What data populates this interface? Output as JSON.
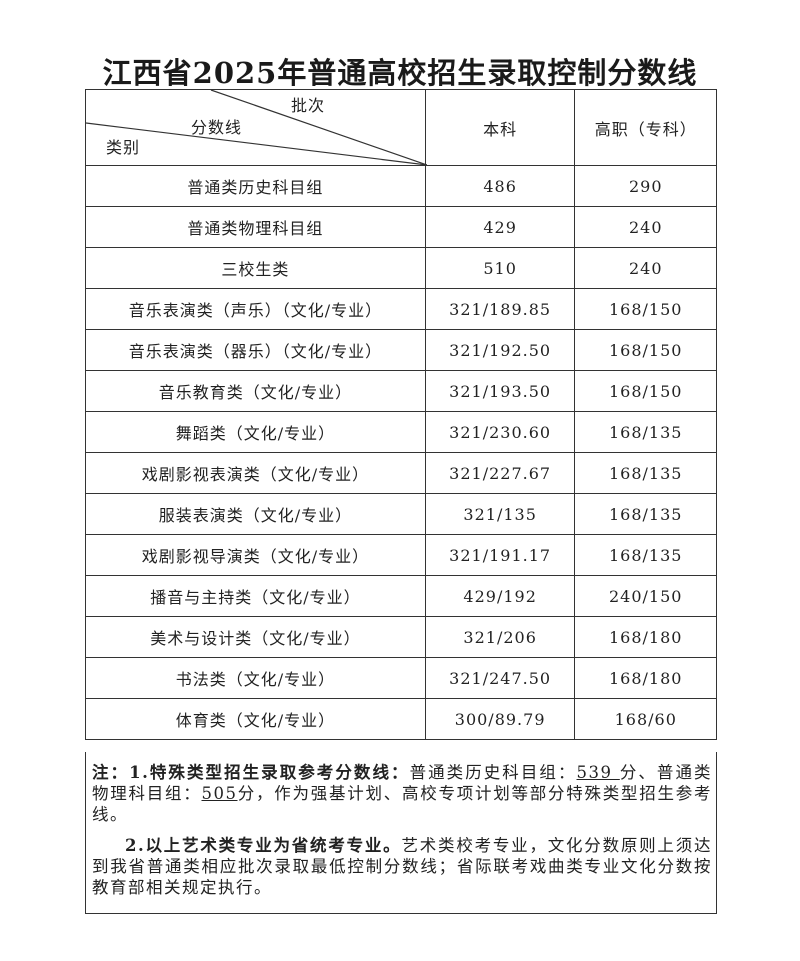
{
  "title": "江西省2025年普通高校招生录取控制分数线",
  "header": {
    "diag_batch": "批次",
    "diag_score": "分数线",
    "diag_category": "类别",
    "col_benke": "本科",
    "col_gaozhi": "高职（专科）"
  },
  "rows": [
    {
      "category": "普通类历史科目组",
      "benke": "486",
      "gaozhi": "290"
    },
    {
      "category": "普通类物理科目组",
      "benke": "429",
      "gaozhi": "240"
    },
    {
      "category": "三校生类",
      "benke": "510",
      "gaozhi": "240"
    },
    {
      "category": "音乐表演类（声乐）（文化/专业）",
      "benke": "321/189.85",
      "gaozhi": "168/150"
    },
    {
      "category": "音乐表演类（器乐）（文化/专业）",
      "benke": "321/192.50",
      "gaozhi": "168/150"
    },
    {
      "category": "音乐教育类（文化/专业）",
      "benke": "321/193.50",
      "gaozhi": "168/150"
    },
    {
      "category": "舞蹈类（文化/专业）",
      "benke": "321/230.60",
      "gaozhi": "168/135"
    },
    {
      "category": "戏剧影视表演类（文化/专业）",
      "benke": "321/227.67",
      "gaozhi": "168/135"
    },
    {
      "category": "服装表演类（文化/专业）",
      "benke": "321/135",
      "gaozhi": "168/135"
    },
    {
      "category": "戏剧影视导演类（文化/专业）",
      "benke": "321/191.17",
      "gaozhi": "168/135"
    },
    {
      "category": "播音与主持类（文化/专业）",
      "benke": "429/192",
      "gaozhi": "240/150"
    },
    {
      "category": "美术与设计类（文化/专业）",
      "benke": "321/206",
      "gaozhi": "168/180"
    },
    {
      "category": "书法类（文化/专业）",
      "benke": "321/247.50",
      "gaozhi": "168/180"
    },
    {
      "category": "体育类（文化/专业）",
      "benke": "300/89.79",
      "gaozhi": "168/60"
    }
  ],
  "notes": {
    "n1_bold": "注：1.特殊类型招生录取参考分数线：",
    "n1_a": "普通类历史科目组：",
    "n1_hist": "539 ",
    "n1_b": "分、普通类物理科目组：",
    "n1_phys": "505",
    "n1_c": "分，作为强基计划、高校专项计划等部分特殊类型招生参考线。",
    "n2_bold": "2.以上艺术类专业为省统考专业。",
    "n2_text": "艺术类校考专业，文化分数原则上须达到我省普通类相应批次录取最低控制分数线；省际联考戏曲类专业文化分数按教育部相关规定执行。"
  }
}
